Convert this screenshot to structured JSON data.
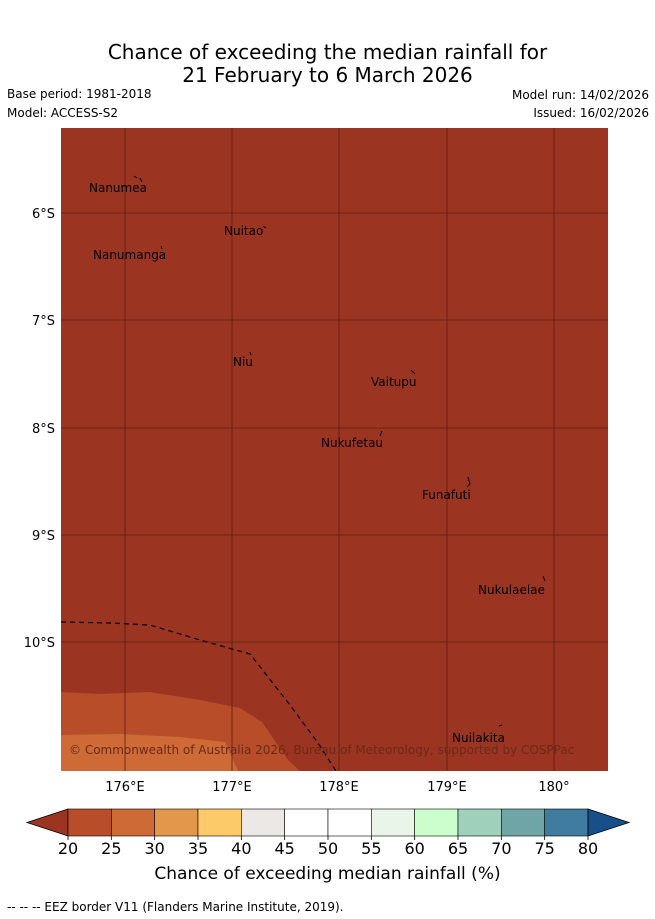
{
  "title": {
    "line1": "Chance of exceeding the median rainfall for",
    "line2": "21 February to 6 March 2026"
  },
  "meta": {
    "base_period": "Base period: 1981-2018",
    "model": "Model: ACCESS-S2",
    "model_run": "Model run: 14/02/2026",
    "issued": "Issued: 16/02/2026"
  },
  "map": {
    "background_color": "#9b3421",
    "lat_labels": [
      "6°S",
      "7°S",
      "8°S",
      "9°S",
      "10°S"
    ],
    "lon_labels": [
      "176°E",
      "177°E",
      "178°E",
      "179°E",
      "180°"
    ],
    "islands": [
      "Nanumea",
      "Nuitao",
      "Nanumanga",
      "Niu",
      "Vaitupu",
      "Nukufetau",
      "Funafuti",
      "Nukulaelae",
      "Nuilakita"
    ],
    "copyright": "© Commonwealth of Australia 2026, Bureau of Meteorology, supported by COSPPac"
  },
  "colorbar": {
    "ticks": [
      "20",
      "25",
      "30",
      "35",
      "40",
      "45",
      "50",
      "55",
      "60",
      "65",
      "70",
      "75",
      "80"
    ],
    "colors": [
      "#9b3421",
      "#b84d2a",
      "#cd6a35",
      "#e2974a",
      "#fdca6a",
      "#ebe8e6",
      "#ffffff",
      "#ffffff",
      "#e9f5e8",
      "#cbfecc",
      "#9ed0bb",
      "#6fa5a6",
      "#3f7c9f",
      "#174f8a"
    ],
    "title": "Chance of exceeding median rainfall (%)"
  },
  "footer": "-- -- -- EEZ border V11 (Flanders Marine Institute, 2019)."
}
